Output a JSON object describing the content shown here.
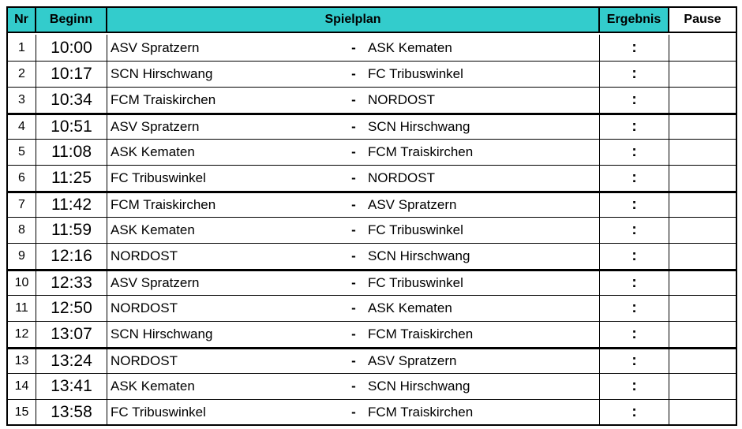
{
  "header": {
    "nr": "Nr",
    "beginn": "Beginn",
    "spielplan": "Spielplan",
    "ergebnis": "Ergebnis",
    "pause": "Pause"
  },
  "dash": "-",
  "score_sep": ":",
  "games": [
    {
      "nr": "1",
      "time": "10:00",
      "home": "ASV Spratzern",
      "away": "ASK Kematen"
    },
    {
      "nr": "2",
      "time": "10:17",
      "home": "SCN Hirschwang",
      "away": "FC Tribuswinkel"
    },
    {
      "nr": "3",
      "time": "10:34",
      "home": "FCM Traiskirchen",
      "away": "NORDOST"
    },
    {
      "nr": "4",
      "time": "10:51",
      "home": "ASV Spratzern",
      "away": "SCN Hirschwang"
    },
    {
      "nr": "5",
      "time": "11:08",
      "home": "ASK Kematen",
      "away": "FCM Traiskirchen"
    },
    {
      "nr": "6",
      "time": "11:25",
      "home": "FC Tribuswinkel",
      "away": "NORDOST"
    },
    {
      "nr": "7",
      "time": "11:42",
      "home": "FCM Traiskirchen",
      "away": "ASV Spratzern"
    },
    {
      "nr": "8",
      "time": "11:59",
      "home": "ASK Kematen",
      "away": "FC Tribuswinkel"
    },
    {
      "nr": "9",
      "time": "12:16",
      "home": "NORDOST",
      "away": "SCN Hirschwang"
    },
    {
      "nr": "10",
      "time": "12:33",
      "home": "ASV Spratzern",
      "away": "FC Tribuswinkel"
    },
    {
      "nr": "11",
      "time": "12:50",
      "home": "NORDOST",
      "away": "ASK Kematen"
    },
    {
      "nr": "12",
      "time": "13:07",
      "home": "SCN Hirschwang",
      "away": "FCM Traiskirchen"
    },
    {
      "nr": "13",
      "time": "13:24",
      "home": "NORDOST",
      "away": "ASV Spratzern"
    },
    {
      "nr": "14",
      "time": "13:41",
      "home": "ASK Kematen",
      "away": "SCN Hirschwang"
    },
    {
      "nr": "15",
      "time": "13:58",
      "home": "FC Tribuswinkel",
      "away": "FCM Traiskirchen"
    }
  ]
}
